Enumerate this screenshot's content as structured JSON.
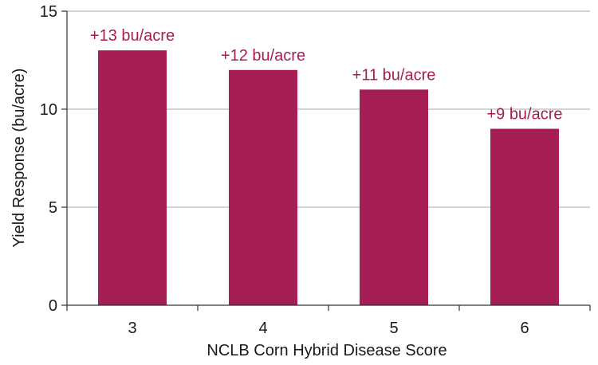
{
  "chart_data": {
    "type": "bar",
    "categories": [
      "3",
      "4",
      "5",
      "6"
    ],
    "values": [
      13,
      12,
      11,
      9
    ],
    "data_labels": [
      "+13 bu/acre",
      "+12 bu/acre",
      "+11 bu/acre",
      "+9 bu/acre"
    ],
    "title": "",
    "xlabel": "NCLB Corn Hybrid Disease Score",
    "ylabel": "Yield Response (bu/acre)",
    "ylim": [
      0,
      15
    ],
    "yticks": [
      0,
      5,
      10,
      15
    ],
    "grid": true,
    "legend": "none"
  },
  "colors": {
    "bar": "#a41d54",
    "label": "#a41d54",
    "grid": "#a9a9a9",
    "axis": "#333333"
  }
}
